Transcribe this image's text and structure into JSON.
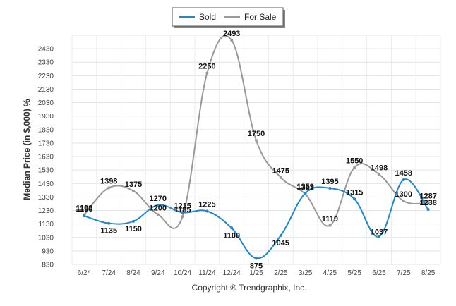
{
  "chart_data": {
    "type": "line",
    "ylabel": "Median Price (in $,000) %",
    "footer": "Copyright ® Trendgraphix, Inc.",
    "ylim": [
      830,
      2530
    ],
    "y_ticks": [
      830,
      930,
      1030,
      1130,
      1230,
      1330,
      1430,
      1530,
      1630,
      1730,
      1830,
      1930,
      2030,
      2130,
      2230,
      2330,
      2430
    ],
    "categories": [
      "6/24",
      "7/24",
      "8/24",
      "9/24",
      "10/24",
      "11/24",
      "12/24",
      "1/25",
      "2/25",
      "3/25",
      "4/25",
      "5/25",
      "6/25",
      "7/25",
      "8/25"
    ],
    "grid": true,
    "legend_position": "top-center",
    "series": [
      {
        "name": "Sold",
        "color": "#1f88c9",
        "values": [
          1190,
          1135,
          1150,
          1270,
          1215,
          1225,
          1100,
          875,
          1045,
          1359,
          1395,
          1315,
          1037,
          1458,
          1238
        ],
        "labels": [
          "1190",
          "1135",
          "1150",
          "1270",
          "1215",
          "1225",
          "1100",
          "875",
          "1045",
          "1359",
          "1395",
          "1315",
          "1037",
          "1458",
          "1238"
        ]
      },
      {
        "name": "For Sale",
        "color": "#999999",
        "values": [
          1199,
          1398,
          1375,
          1200,
          1185,
          2250,
          2493,
          1750,
          1475,
          1351,
          1119,
          1550,
          1498,
          1300,
          1287
        ],
        "labels": [
          "1199",
          "1398",
          "1375",
          "1200",
          "1185",
          "2250",
          "2493",
          "1750",
          "1475",
          "1351",
          "1119",
          "1550",
          "1498",
          "1300",
          "1287"
        ]
      }
    ]
  }
}
